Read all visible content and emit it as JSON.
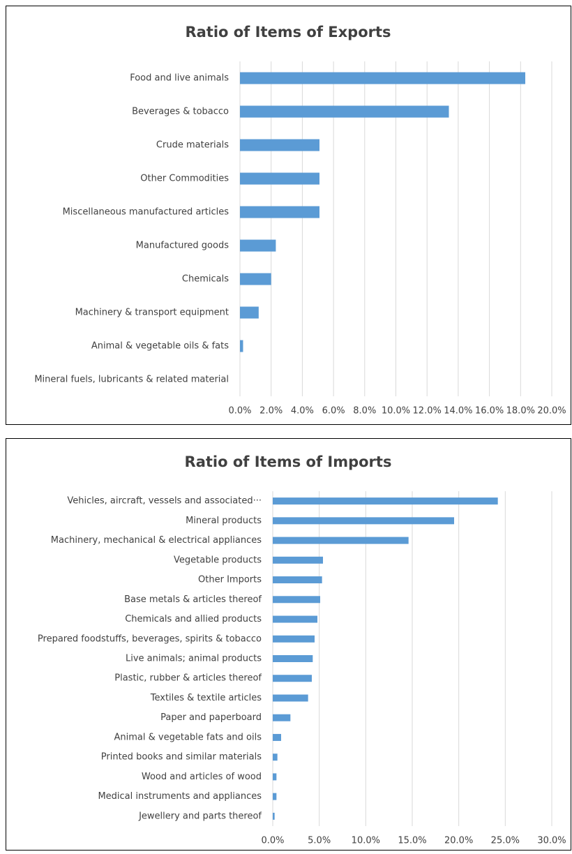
{
  "chart_data": [
    {
      "type": "barh",
      "title": "Ratio of Items of Exports",
      "categories": [
        "Food and live animals",
        "Beverages & tobacco",
        "Crude materials",
        "Other Commodities",
        "Miscellaneous manufactured articles",
        "Manufactured goods",
        "Chemicals",
        "Machinery & transport equipment",
        "Animal & vegetable oils & fats",
        "Mineral fuels, lubricants & related material"
      ],
      "values": [
        18.3,
        13.4,
        5.1,
        5.1,
        5.1,
        2.3,
        2.0,
        1.2,
        0.2,
        0
      ],
      "color": "#5b9bd5",
      "grid": true,
      "xlim": [
        0,
        20
      ],
      "xticks": [
        {
          "value": 0,
          "label": "0.0%"
        },
        {
          "value": 2,
          "label": "2.0%"
        },
        {
          "value": 4,
          "label": "4.0%"
        },
        {
          "value": 6,
          "label": "6.0%"
        },
        {
          "value": 8,
          "label": "8.0%"
        },
        {
          "value": 10,
          "label": "10.0%"
        },
        {
          "value": 12,
          "label": "12.0%"
        },
        {
          "value": 14,
          "label": "14.0%"
        },
        {
          "value": 16,
          "label": "16.0%"
        },
        {
          "value": 18,
          "label": "18.0%"
        },
        {
          "value": 20,
          "label": "20.0%"
        }
      ]
    },
    {
      "type": "barh",
      "title": "Ratio of Items of Imports",
      "categories": [
        "Vehicles, aircraft, vessels and associated···",
        "Mineral products",
        "Machinery, mechanical & electrical appliances",
        "Vegetable products",
        "Other Imports",
        "Base metals & articles thereof",
        "Chemicals and allied products",
        "Prepared foodstuffs, beverages, spirits & tobacco",
        "Live animals; animal products",
        "Plastic, rubber & articles thereof",
        "Textiles & textile articles",
        "Paper and paperboard",
        "Animal & vegetable fats and oils",
        "Printed books and similar materials",
        "Wood and articles of wood",
        "Medical instruments and appliances",
        "Jewellery and parts thereof"
      ],
      "values": [
        24.2,
        19.5,
        14.6,
        5.4,
        5.3,
        5.1,
        4.8,
        4.5,
        4.3,
        4.2,
        3.8,
        1.9,
        0.9,
        0.5,
        0.4,
        0.4,
        0.2
      ],
      "color": "#5b9bd5",
      "grid": true,
      "xlim": [
        0,
        30
      ],
      "xticks": [
        {
          "value": 0,
          "label": "0.0%"
        },
        {
          "value": 5,
          "label": "5.0%"
        },
        {
          "value": 10,
          "label": "10.0%"
        },
        {
          "value": 15,
          "label": "15.0%"
        },
        {
          "value": 20,
          "label": "20.0%"
        },
        {
          "value": 25,
          "label": "25.0%"
        },
        {
          "value": 30,
          "label": "30.0%"
        }
      ]
    }
  ]
}
